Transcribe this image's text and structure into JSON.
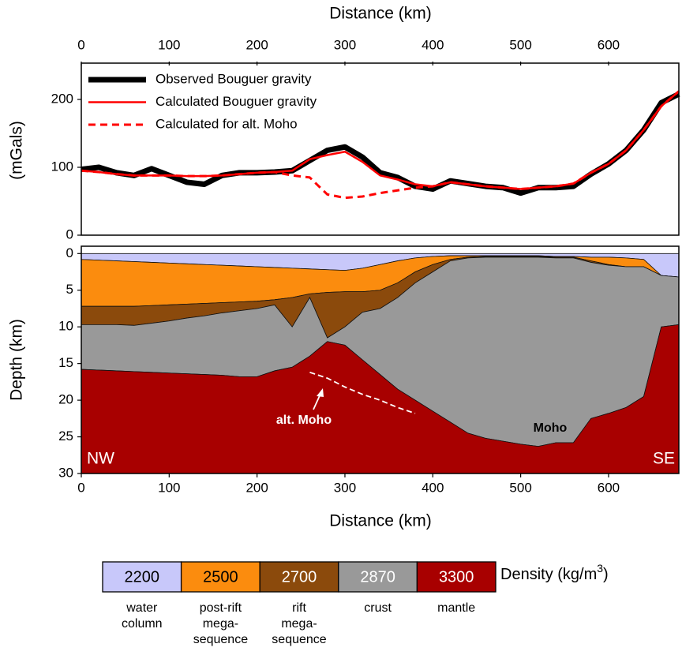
{
  "chart_data": [
    {
      "type": "line",
      "x_label": "Distance (km)",
      "y_label": "(mGals)",
      "x": [
        0,
        20,
        40,
        60,
        80,
        100,
        120,
        140,
        160,
        180,
        200,
        220,
        240,
        260,
        280,
        300,
        320,
        340,
        360,
        380,
        400,
        420,
        440,
        460,
        480,
        500,
        520,
        540,
        560,
        580,
        600,
        620,
        640,
        660,
        680
      ],
      "xlim": [
        0,
        680
      ],
      "xticks": [
        0,
        100,
        200,
        300,
        400,
        500,
        600
      ],
      "ylim": [
        0,
        250
      ],
      "yticks": [
        0,
        100,
        200
      ],
      "legend": "upper left",
      "series": [
        {
          "name": "Observed Bouguer gravity",
          "color": "#000000",
          "width": 7,
          "dash": "none",
          "values": [
            97,
            100,
            92,
            88,
            98,
            88,
            78,
            75,
            88,
            92,
            92,
            93,
            95,
            110,
            125,
            130,
            115,
            92,
            85,
            72,
            68,
            80,
            76,
            72,
            70,
            62,
            70,
            70,
            72,
            90,
            105,
            125,
            155,
            195,
            208
          ]
        },
        {
          "name": "Calculated Bouguer gravity",
          "color": "#ff0000",
          "width": 2.5,
          "dash": "none",
          "values": [
            95,
            93,
            90,
            88,
            88,
            88,
            87,
            87,
            88,
            90,
            92,
            93,
            95,
            112,
            118,
            123,
            108,
            88,
            82,
            75,
            72,
            78,
            75,
            72,
            70,
            68,
            70,
            72,
            76,
            92,
            105,
            125,
            155,
            190,
            212
          ]
        },
        {
          "name": "Calculated for alt. Moho",
          "color": "#ff0000",
          "width": 3,
          "dash": "9 6",
          "values": [
            95,
            93,
            90,
            88,
            88,
            88,
            87,
            87,
            88,
            90,
            92,
            93,
            88,
            85,
            60,
            55,
            57,
            62,
            66,
            70,
            72,
            78,
            75,
            72,
            70,
            68,
            70,
            72,
            76,
            92,
            105,
            125,
            155,
            190,
            212
          ]
        }
      ]
    },
    {
      "type": "section",
      "x_label": "Distance (km)",
      "y_label": "Depth (km)",
      "x": [
        0,
        20,
        40,
        60,
        80,
        100,
        120,
        140,
        160,
        180,
        200,
        220,
        240,
        260,
        280,
        300,
        320,
        340,
        360,
        380,
        400,
        420,
        440,
        460,
        480,
        500,
        520,
        540,
        560,
        580,
        600,
        620,
        640,
        660,
        680
      ],
      "xlim": [
        0,
        680
      ],
      "xticks": [
        0,
        100,
        200,
        300,
        400,
        500,
        600
      ],
      "ylim": [
        30,
        -1
      ],
      "yticks": [
        0,
        5,
        10,
        15,
        20,
        25,
        30
      ],
      "layers": [
        {
          "density": 2200,
          "label": [
            "water",
            "column"
          ],
          "color": "#c8c8fa",
          "bottom": [
            0.8,
            0.9,
            1.0,
            1.1,
            1.2,
            1.3,
            1.4,
            1.5,
            1.6,
            1.7,
            1.8,
            1.9,
            2.0,
            2.1,
            2.2,
            2.3,
            2.0,
            1.5,
            1.0,
            0.6,
            0.4,
            0.3,
            0.3,
            0.3,
            0.3,
            0.3,
            0.3,
            0.4,
            0.4,
            0.5,
            0.5,
            0.6,
            0.8,
            3.0,
            3.2
          ]
        },
        {
          "density": 2500,
          "label": [
            "post-rift",
            "mega-",
            "sequence"
          ],
          "color": "#fb8c0e",
          "bottom": [
            7.2,
            7.2,
            7.2,
            7.2,
            7.1,
            7.0,
            6.9,
            6.8,
            6.7,
            6.6,
            6.5,
            6.3,
            6.0,
            5.5,
            5.3,
            5.2,
            5.2,
            5.0,
            4.0,
            2.5,
            1.5,
            0.8,
            0.5,
            0.4,
            0.4,
            0.4,
            0.4,
            0.5,
            0.5,
            1.0,
            1.5,
            1.8,
            1.8,
            3.0,
            3.2
          ]
        },
        {
          "density": 2700,
          "label": [
            "rift",
            "mega-",
            "sequence"
          ],
          "color": "#8b4a0c",
          "bottom": [
            9.7,
            9.7,
            9.7,
            9.8,
            9.5,
            9.2,
            8.8,
            8.5,
            8.1,
            7.8,
            7.5,
            7.0,
            10.0,
            6.0,
            11.5,
            10.0,
            8.0,
            7.5,
            6.0,
            4.0,
            2.5,
            1.0,
            0.6,
            0.5,
            0.5,
            0.5,
            0.5,
            0.6,
            0.6,
            1.2,
            1.6,
            1.8,
            1.8,
            3.0,
            3.2
          ]
        },
        {
          "density": 2870,
          "label": [
            "crust"
          ],
          "color": "#999999",
          "bottom": [
            15.8,
            15.9,
            16.0,
            16.1,
            16.2,
            16.3,
            16.4,
            16.5,
            16.6,
            16.8,
            16.8,
            16.0,
            15.5,
            14.0,
            12.0,
            12.5,
            14.5,
            16.5,
            18.5,
            20.0,
            21.5,
            23.0,
            24.5,
            25.2,
            25.6,
            26.0,
            26.3,
            25.8,
            25.8,
            22.5,
            21.8,
            21.0,
            19.5,
            10.0,
            9.7
          ]
        },
        {
          "density": 3300,
          "label": [
            "mantle"
          ],
          "color": "#a80000"
        }
      ],
      "alt_moho": {
        "color": "#ffffff",
        "values": [
          null,
          null,
          null,
          null,
          null,
          null,
          null,
          null,
          null,
          null,
          null,
          null,
          null,
          16.2,
          17.0,
          18.2,
          19.2,
          20.0,
          21.0,
          21.8,
          null,
          null,
          null,
          null,
          null,
          null,
          null,
          null,
          null,
          null,
          null,
          null,
          null,
          null,
          null
        ]
      },
      "annotations": [
        "alt. Moho",
        "Moho",
        "NW",
        "SE"
      ],
      "legend_title": [
        "Density (kg/m",
        "3",
        ")"
      ]
    }
  ]
}
